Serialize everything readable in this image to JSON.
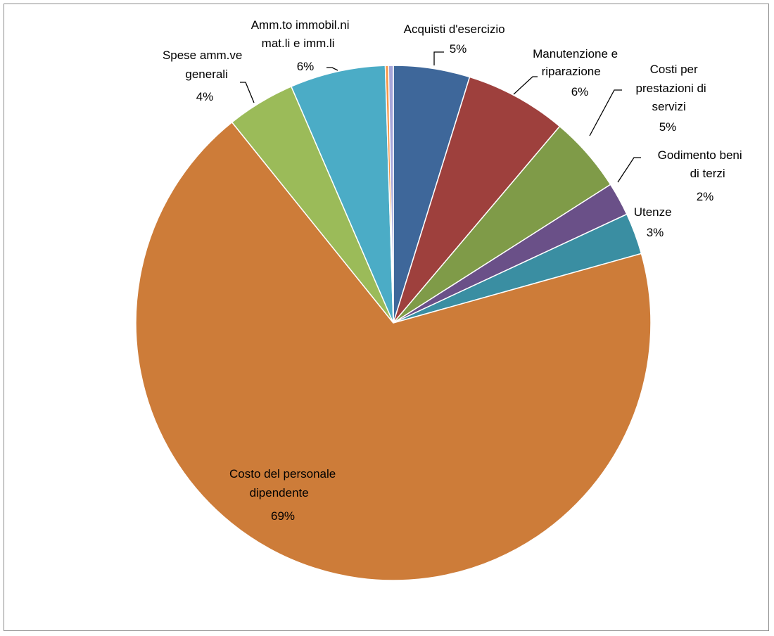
{
  "chart_data": {
    "type": "pie",
    "legend": "none",
    "start_angle_deg": 0,
    "direction": "clockwise",
    "slices": [
      {
        "label": "Acquisti d'esercizio",
        "value": 4.8,
        "display": "5%",
        "color": "#3E679A"
      },
      {
        "label": "Manutenzione e riparazione",
        "value": 6.4,
        "display": "6%",
        "color": "#9E403D"
      },
      {
        "label": "Costi per prestazioni di servizi",
        "value": 4.8,
        "display": "5%",
        "color": "#7F9B48"
      },
      {
        "label": "Godimento  beni di terzi",
        "value": 2.1,
        "display": "2%",
        "color": "#6A5088"
      },
      {
        "label": "Utenze",
        "value": 2.6,
        "display": "3%",
        "color": "#3A8EA2"
      },
      {
        "label": "Costo del personale dipendente",
        "value": 68.7,
        "display": "69%",
        "color": "#CD7C39"
      },
      {
        "label": "Spese amm.ve generali",
        "value": 4.3,
        "display": "4%",
        "color": "#9BBB59"
      },
      {
        "label": "Amm.to   immobil.ni mat.li e imm.li",
        "value": 6.0,
        "display": "6%",
        "color": "#4BACC6"
      },
      {
        "label": "",
        "value": 0.2,
        "display": "",
        "color": "#F79646"
      },
      {
        "label": "",
        "value": 0.3,
        "display": "",
        "color": "#A5A5D9"
      }
    ]
  }
}
